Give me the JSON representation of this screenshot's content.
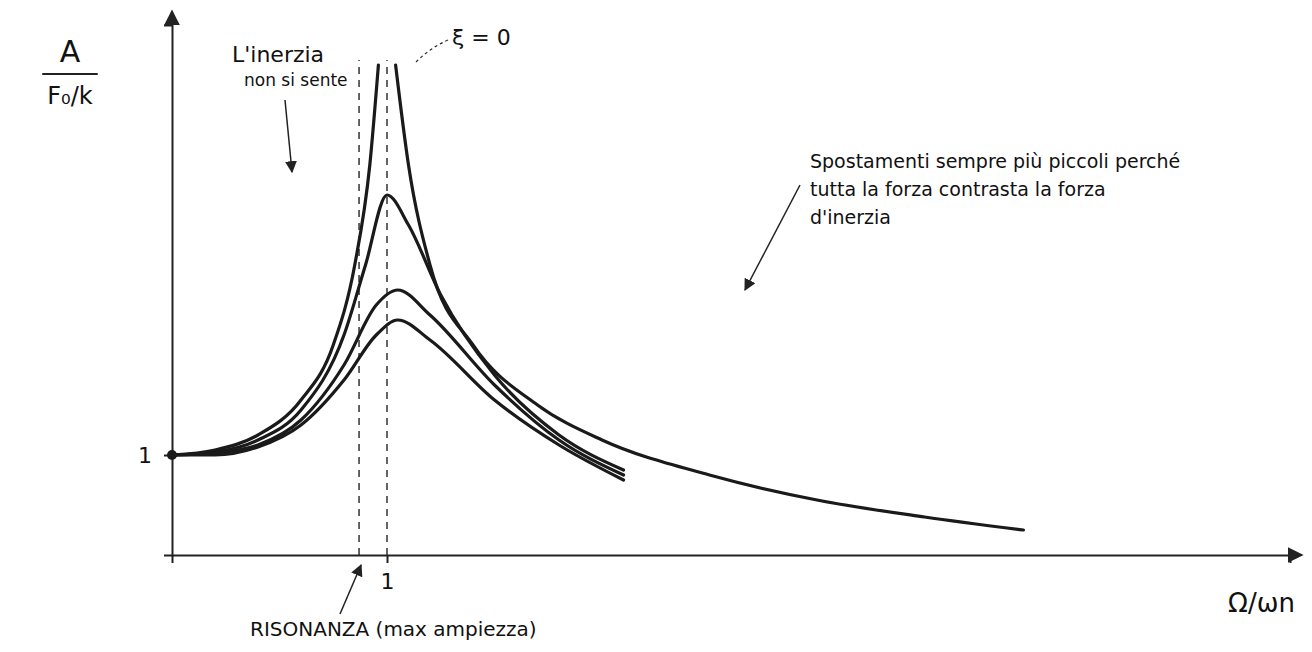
{
  "chart_data": {
    "type": "line",
    "xlabel": "Ω/ωn",
    "ylabel": [
      "A",
      "F₀/k"
    ],
    "xlim": [
      0,
      5.2
    ],
    "ylim": [
      0,
      5.3
    ],
    "xticks": [
      1
    ],
    "yticks": [
      1
    ],
    "grid": false,
    "resonance_x": [
      0.87,
      1
    ],
    "series": [
      {
        "color": "#1a1a1a",
        "line_style": "solid",
        "x": [
          0,
          0.2,
          0.4,
          0.6,
          0.75,
          0.85,
          0.92,
          0.96,
          1.0,
          1.04,
          1.1,
          1.2,
          1.4,
          1.7,
          2.0,
          2.5,
          3.0,
          3.5,
          3.96
        ],
        "values": [
          1,
          1.05,
          1.2,
          1.55,
          2.1,
          2.9,
          3.9,
          4.9,
          null,
          4.9,
          3.9,
          2.9,
          2.1,
          1.5,
          1.15,
          0.8,
          0.55,
          0.38,
          0.25
        ]
      },
      {
        "color": "#1a1a1a",
        "line_style": "solid",
        "x": [
          0,
          0.2,
          0.4,
          0.6,
          0.8,
          0.9,
          1.0,
          1.1,
          1.25,
          1.5,
          1.8,
          2.1
        ],
        "values": [
          1,
          1.03,
          1.15,
          1.45,
          2.2,
          2.9,
          3.6,
          3.3,
          2.6,
          1.8,
          1.2,
          0.85
        ]
      },
      {
        "color": "#1a1a1a",
        "line_style": "solid",
        "x": [
          0,
          0.2,
          0.4,
          0.6,
          0.8,
          0.95,
          1.05,
          1.2,
          1.5,
          1.8,
          2.1
        ],
        "values": [
          1,
          1.02,
          1.1,
          1.35,
          1.9,
          2.5,
          2.65,
          2.4,
          1.7,
          1.15,
          0.8
        ]
      },
      {
        "color": "#1a1a1a",
        "line_style": "solid",
        "x": [
          0,
          0.2,
          0.4,
          0.6,
          0.8,
          0.95,
          1.05,
          1.2,
          1.5,
          1.8,
          2.1
        ],
        "values": [
          1,
          1.0,
          1.08,
          1.3,
          1.75,
          2.2,
          2.35,
          2.15,
          1.55,
          1.1,
          0.75
        ]
      }
    ],
    "annotations": {
      "zeta": "ξ = 0",
      "inertia": [
        "L'inerzia",
        "non si sente"
      ],
      "displacements": [
        "Spostamenti sempre più piccoli perché",
        "tutta la forza contrasta la forza",
        "d'inerzia"
      ],
      "resonance": "RISONANZA (max ampiezza)"
    }
  }
}
